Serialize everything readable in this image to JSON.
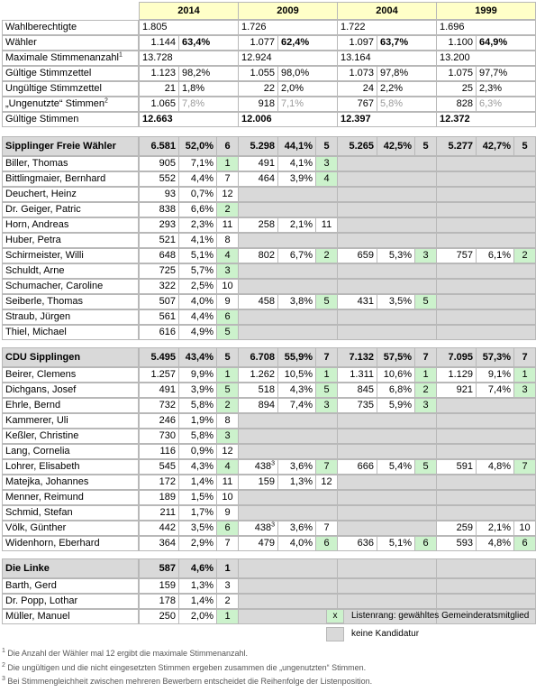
{
  "years": [
    "2014",
    "2009",
    "2004",
    "1999"
  ],
  "summary": [
    {
      "label": "Wahlberechtigte",
      "cells": [
        [
          "1.805",
          ""
        ],
        [
          "1.726",
          ""
        ],
        [
          "1.722",
          ""
        ],
        [
          "1.696",
          ""
        ]
      ]
    },
    {
      "label": "Wähler",
      "cells": [
        [
          "1.144",
          "63,4%"
        ],
        [
          "1.077",
          "62,4%"
        ],
        [
          "1.097",
          "63,7%"
        ],
        [
          "1.100",
          "64,9%"
        ]
      ],
      "pct_style": "bold"
    },
    {
      "label": "Maximale Stimmenanzahl",
      "sup": "1",
      "cells": [
        [
          "13.728",
          ""
        ],
        [
          "12.924",
          ""
        ],
        [
          "13.164",
          ""
        ],
        [
          "13.200",
          ""
        ]
      ],
      "num_align": "left"
    },
    {
      "label": "Gültige Stimmzettel",
      "cells": [
        [
          "1.123",
          "98,2%"
        ],
        [
          "1.055",
          "98,0%"
        ],
        [
          "1.073",
          "97,8%"
        ],
        [
          "1.075",
          "97,7%"
        ]
      ]
    },
    {
      "label": "Ungültige Stimmzettel",
      "cells": [
        [
          "21",
          "1,8%"
        ],
        [
          "22",
          "2,0%"
        ],
        [
          "24",
          "2,2%"
        ],
        [
          "25",
          "2,3%"
        ]
      ]
    },
    {
      "label": "„Ungenutzte“ Stimmen",
      "sup": "2",
      "cells": [
        [
          "1.065",
          "7,8%"
        ],
        [
          "918",
          "7,1%"
        ],
        [
          "767",
          "5,8%"
        ],
        [
          "828",
          "6,3%"
        ]
      ],
      "pct_style": "dim"
    },
    {
      "label": "Gültige Stimmen",
      "cells": [
        [
          "12.663",
          ""
        ],
        [
          "12.006",
          ""
        ],
        [
          "12.397",
          ""
        ],
        [
          "12.372",
          ""
        ]
      ],
      "num_align": "left",
      "num_style": "bold"
    }
  ],
  "parties": [
    {
      "name": "Sipplinger Freie Wähler",
      "totals": [
        [
          "6.581",
          "52,0%",
          "6"
        ],
        [
          "5.298",
          "44,1%",
          "5"
        ],
        [
          "5.265",
          "42,5%",
          "5"
        ],
        [
          "5.277",
          "42,7%",
          "5"
        ]
      ],
      "candidates": [
        {
          "name": "Biller, Thomas",
          "results": [
            [
              "905",
              "7,1%",
              "1",
              true
            ],
            [
              "491",
              "4,1%",
              "3",
              true
            ],
            null,
            null
          ]
        },
        {
          "name": "Bittlingmaier, Bernhard",
          "results": [
            [
              "552",
              "4,4%",
              "7",
              false
            ],
            [
              "464",
              "3,9%",
              "4",
              true
            ],
            null,
            null
          ]
        },
        {
          "name": "Deuchert, Heinz",
          "results": [
            [
              "93",
              "0,7%",
              "12",
              false
            ],
            null,
            null,
            null
          ]
        },
        {
          "name": "Dr. Geiger, Patric",
          "results": [
            [
              "838",
              "6,6%",
              "2",
              true
            ],
            null,
            null,
            null
          ]
        },
        {
          "name": "Horn, Andreas",
          "results": [
            [
              "293",
              "2,3%",
              "11",
              false
            ],
            [
              "258",
              "2,1%",
              "11",
              false
            ],
            null,
            null
          ]
        },
        {
          "name": "Huber, Petra",
          "results": [
            [
              "521",
              "4,1%",
              "8",
              false
            ],
            null,
            null,
            null
          ]
        },
        {
          "name": "Schirmeister, Willi",
          "results": [
            [
              "648",
              "5,1%",
              "4",
              true
            ],
            [
              "802",
              "6,7%",
              "2",
              true
            ],
            [
              "659",
              "5,3%",
              "3",
              true
            ],
            [
              "757",
              "6,1%",
              "2",
              true
            ]
          ]
        },
        {
          "name": "Schuldt, Arne",
          "results": [
            [
              "725",
              "5,7%",
              "3",
              true
            ],
            null,
            null,
            null
          ]
        },
        {
          "name": "Schumacher, Caroline",
          "results": [
            [
              "322",
              "2,5%",
              "10",
              false
            ],
            null,
            null,
            null
          ]
        },
        {
          "name": "Seiberle, Thomas",
          "results": [
            [
              "507",
              "4,0%",
              "9",
              false
            ],
            [
              "458",
              "3,8%",
              "5",
              true
            ],
            [
              "431",
              "3,5%",
              "5",
              true
            ],
            null
          ]
        },
        {
          "name": "Straub, Jürgen",
          "results": [
            [
              "561",
              "4,4%",
              "6",
              true
            ],
            null,
            null,
            null
          ]
        },
        {
          "name": "Thiel, Michael",
          "results": [
            [
              "616",
              "4,9%",
              "5",
              true
            ],
            null,
            null,
            null
          ]
        }
      ]
    },
    {
      "name": "CDU Sipplingen",
      "totals": [
        [
          "5.495",
          "43,4%",
          "5"
        ],
        [
          "6.708",
          "55,9%",
          "7"
        ],
        [
          "7.132",
          "57,5%",
          "7"
        ],
        [
          "7.095",
          "57,3%",
          "7"
        ]
      ],
      "candidates": [
        {
          "name": "Beirer, Clemens",
          "results": [
            [
              "1.257",
              "9,9%",
              "1",
              true
            ],
            [
              "1.262",
              "10,5%",
              "1",
              true
            ],
            [
              "1.311",
              "10,6%",
              "1",
              true
            ],
            [
              "1.129",
              "9,1%",
              "1",
              true
            ]
          ]
        },
        {
          "name": "Dichgans, Josef",
          "results": [
            [
              "491",
              "3,9%",
              "5",
              true
            ],
            [
              "518",
              "4,3%",
              "5",
              true
            ],
            [
              "845",
              "6,8%",
              "2",
              true
            ],
            [
              "921",
              "7,4%",
              "3",
              true
            ]
          ]
        },
        {
          "name": "Ehrle, Bernd",
          "results": [
            [
              "732",
              "5,8%",
              "2",
              true
            ],
            [
              "894",
              "7,4%",
              "3",
              true
            ],
            [
              "735",
              "5,9%",
              "3",
              true
            ],
            null
          ]
        },
        {
          "name": "Kammerer, Uli",
          "results": [
            [
              "246",
              "1,9%",
              "8",
              false
            ],
            null,
            null,
            null
          ]
        },
        {
          "name": "Keßler, Christine",
          "results": [
            [
              "730",
              "5,8%",
              "3",
              true
            ],
            null,
            null,
            null
          ]
        },
        {
          "name": "Lang, Cornelia",
          "results": [
            [
              "116",
              "0,9%",
              "12",
              false
            ],
            null,
            null,
            null
          ]
        },
        {
          "name": "Lohrer, Elisabeth",
          "results": [
            [
              "545",
              "4,3%",
              "4",
              true
            ],
            [
              "438",
              "3,6%",
              "7",
              true,
              "3"
            ],
            [
              "666",
              "5,4%",
              "5",
              true
            ],
            [
              "591",
              "4,8%",
              "7",
              true
            ]
          ]
        },
        {
          "name": "Matejka, Johannes",
          "results": [
            [
              "172",
              "1,4%",
              "11",
              false
            ],
            [
              "159",
              "1,3%",
              "12",
              false
            ],
            null,
            null
          ]
        },
        {
          "name": "Menner, Reimund",
          "results": [
            [
              "189",
              "1,5%",
              "10",
              false
            ],
            null,
            null,
            null
          ]
        },
        {
          "name": "Schmid, Stefan",
          "results": [
            [
              "211",
              "1,7%",
              "9",
              false
            ],
            null,
            null,
            null
          ]
        },
        {
          "name": "Völk, Günther",
          "results": [
            [
              "442",
              "3,5%",
              "6",
              true
            ],
            [
              "438",
              "3,6%",
              "7",
              false,
              "3"
            ],
            null,
            [
              "259",
              "2,1%",
              "10",
              false
            ]
          ]
        },
        {
          "name": "Widenhorn, Eberhard",
          "results": [
            [
              "364",
              "2,9%",
              "7",
              false
            ],
            [
              "479",
              "4,0%",
              "6",
              true
            ],
            [
              "636",
              "5,1%",
              "6",
              true
            ],
            [
              "593",
              "4,8%",
              "6",
              true
            ]
          ]
        }
      ]
    },
    {
      "name": "Die Linke",
      "totals": [
        [
          "587",
          "4,6%",
          "1"
        ],
        null,
        null,
        null
      ],
      "candidates": [
        {
          "name": "Barth, Gerd",
          "results": [
            [
              "159",
              "1,3%",
              "3",
              false
            ],
            null,
            null,
            null
          ]
        },
        {
          "name": "Dr. Popp, Lothar",
          "results": [
            [
              "178",
              "1,4%",
              "2",
              false
            ],
            null,
            null,
            null
          ]
        },
        {
          "name": "Müller, Manuel",
          "results": [
            [
              "250",
              "2,0%",
              "1",
              true
            ],
            null,
            null,
            null
          ]
        }
      ]
    }
  ],
  "legend": {
    "elected_marker": "x",
    "elected_label": "Listenrang: gewähltes Gemeinderatsmitglied",
    "no_candidacy_label": "keine Kandidatur"
  },
  "footnotes": [
    {
      "num": "1",
      "text": "Die Anzahl der Wähler mal 12 ergibt die maximale Stimmenanzahl."
    },
    {
      "num": "2",
      "text": "Die ungültigen und die nicht eingesetzten Stimmen ergeben zusammen die „ungenutzten“ Stimmen."
    },
    {
      "num": "3",
      "text": "Bei Stimmengleichheit zwischen mehreren Bewerbern entscheidet die Reihenfolge der Listenposition."
    }
  ],
  "colors": {
    "elected": "#ccf2cc",
    "no_candidacy": "#d9d9d9",
    "year_header": "#ffffc8",
    "grid": "#b8b8b8"
  }
}
